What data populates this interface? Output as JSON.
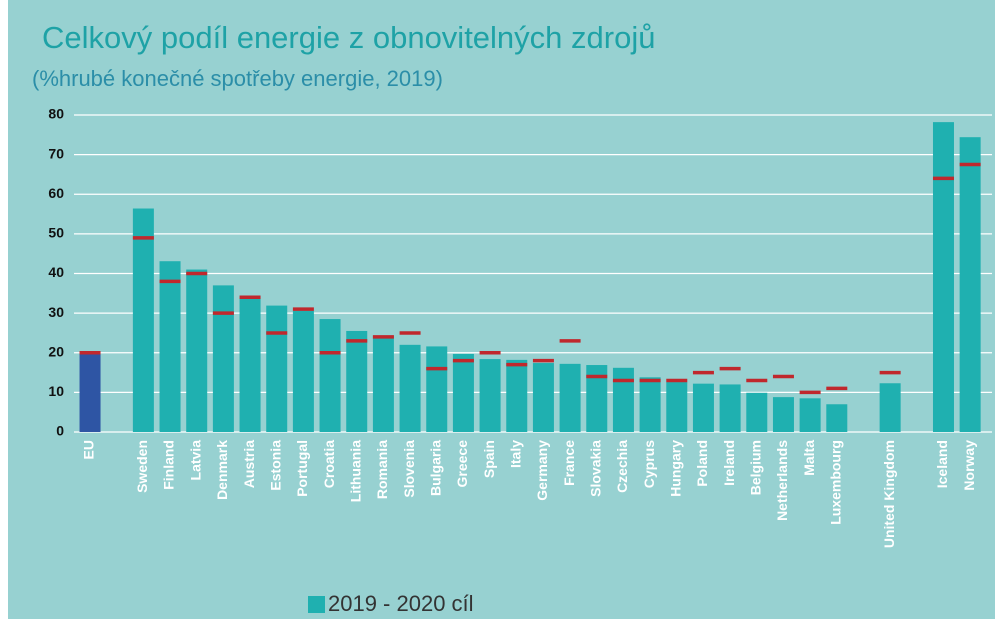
{
  "chart_data": {
    "type": "bar",
    "title": "Celkový podíl energie z obnovitelných zdrojů",
    "subtitle": "(%hrubé konečné spotřeby energie, 2019)",
    "categories": [
      "EU",
      null,
      "Sweden",
      "Finland",
      "Latvia",
      "Denmark",
      "Austria",
      "Estonia",
      "Portugal",
      "Croatia",
      "Lithuania",
      "Romania",
      "Slovenia",
      "Bulgaria",
      "Greece",
      "Spain",
      "Italy",
      "Germany",
      "France",
      "Slovakia",
      "Czechia",
      "Cyprus",
      "Hungary",
      "Poland",
      "Ireland",
      "Belgium",
      "Netherlands",
      "Malta",
      "Luxembourg",
      null,
      "United Kingdom",
      null,
      "Iceland",
      "Norway"
    ],
    "series": [
      {
        "name": "2019 - 2020 cíl",
        "color": "#1fb0b0",
        "values": [
          19.7,
          null,
          56.4,
          43.1,
          41,
          37,
          33.6,
          31.9,
          30.6,
          28.5,
          25.5,
          24.3,
          22,
          21.6,
          19.7,
          18.4,
          18.2,
          17.4,
          17.2,
          16.9,
          16.2,
          13.8,
          12.6,
          12.2,
          12,
          9.9,
          8.8,
          8.5,
          7,
          null,
          12.3,
          null,
          78.2,
          74.4
        ]
      }
    ],
    "colors": [
      "#2e55a4",
      null,
      "#1fb0b0",
      "#1fb0b0",
      "#1fb0b0",
      "#1fb0b0",
      "#1fb0b0",
      "#1fb0b0",
      "#1fb0b0",
      "#1fb0b0",
      "#1fb0b0",
      "#1fb0b0",
      "#1fb0b0",
      "#1fb0b0",
      "#1fb0b0",
      "#1fb0b0",
      "#1fb0b0",
      "#1fb0b0",
      "#1fb0b0",
      "#1fb0b0",
      "#1fb0b0",
      "#1fb0b0",
      "#1fb0b0",
      "#1fb0b0",
      "#1fb0b0",
      "#1fb0b0",
      "#1fb0b0",
      "#1fb0b0",
      "#1fb0b0",
      null,
      "#1fb0b0",
      null,
      "#1fb0b0",
      "#1fb0b0"
    ],
    "targets": {
      "color": "#c0282d",
      "values": [
        20,
        null,
        49,
        38,
        40,
        30,
        34,
        25,
        31,
        20,
        23,
        24,
        25,
        16,
        18,
        20,
        17,
        18,
        23,
        14,
        13,
        13,
        13,
        15,
        16,
        13,
        14,
        10,
        11,
        null,
        15,
        null,
        64,
        67.5
      ]
    },
    "ylim": [
      0,
      80
    ],
    "yticks": [
      0,
      10,
      20,
      30,
      40,
      50,
      60,
      70,
      80
    ],
    "grid": true
  }
}
